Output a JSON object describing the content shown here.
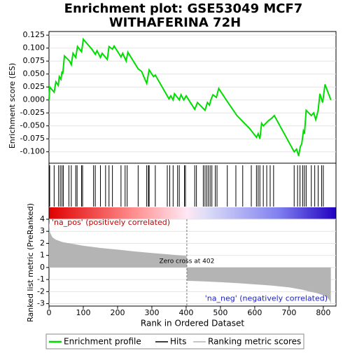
{
  "chart_data": [
    {
      "type": "line",
      "title": [
        "Enrichment plot: GSE53049 MCF7",
        "WITHAFERINA 72H"
      ],
      "y_label": "Enrichment score (ES)",
      "x": [
        0,
        2,
        15,
        20,
        27,
        30,
        35,
        38,
        40,
        45,
        60,
        65,
        70,
        78,
        83,
        95,
        100,
        125,
        135,
        140,
        150,
        155,
        170,
        175,
        185,
        190,
        210,
        215,
        225,
        230,
        260,
        270,
        285,
        292,
        305,
        310,
        350,
        355,
        362,
        366,
        380,
        385,
        393,
        400,
        425,
        433,
        455,
        462,
        468,
        472,
        478,
        488,
        495,
        520,
        548,
        570,
        585,
        605,
        610,
        615,
        620,
        625,
        640,
        650,
        657,
        715,
        722,
        728,
        733,
        737,
        742,
        745,
        750,
        765,
        772,
        778,
        785,
        790,
        798,
        805,
        822
      ],
      "series": [
        {
          "name": "Enrichment profile",
          "color": "#00dd00",
          "values": [
            0,
            0.025,
            0.015,
            0.035,
            0.028,
            0.045,
            0.04,
            0.055,
            0.05,
            0.085,
            0.075,
            0.068,
            0.09,
            0.082,
            0.103,
            0.093,
            0.117,
            0.098,
            0.088,
            0.095,
            0.082,
            0.09,
            0.078,
            0.103,
            0.098,
            0.104,
            0.083,
            0.09,
            0.075,
            0.092,
            0.06,
            0.055,
            0.032,
            0.058,
            0.045,
            0.048,
            0.002,
            0.008,
            0,
            0.012,
            0,
            0.01,
            0,
            0.008,
            -0.018,
            -0.005,
            -0.02,
            -0.005,
            -0.01,
            0,
            0.01,
            0.005,
            0.022,
            -0.003,
            -0.03,
            -0.045,
            -0.055,
            -0.072,
            -0.065,
            -0.075,
            -0.045,
            -0.05,
            -0.04,
            -0.035,
            -0.03,
            -0.1,
            -0.095,
            -0.108,
            -0.09,
            -0.085,
            -0.06,
            -0.065,
            -0.02,
            -0.03,
            -0.025,
            -0.038,
            -0.02,
            0.012,
            -0.005,
            0.03,
            0
          ]
        }
      ],
      "xlim": [
        0,
        837
      ],
      "ylim": [
        -0.122,
        0.132
      ],
      "yticks": [
        {
          "value": -0.1,
          "label": "-0.100"
        },
        -0.075,
        {
          "value": -0.05,
          "label": "-0.050"
        },
        -0.025,
        {
          "value": 0,
          "label": "0.000"
        },
        0.025,
        {
          "value": 0.05,
          "label": "0.050"
        },
        0.075,
        {
          "value": 0.1,
          "label": "0.100"
        },
        0.125
      ],
      "grid": true
    },
    {
      "type": "rug",
      "name": "Hits",
      "color": "#000000",
      "values": [
        2,
        15,
        28,
        33,
        38,
        42,
        58,
        65,
        78,
        82,
        95,
        98,
        130,
        135,
        150,
        165,
        175,
        185,
        210,
        222,
        228,
        260,
        285,
        290,
        292,
        310,
        345,
        352,
        362,
        375,
        380,
        395,
        398,
        425,
        430,
        450,
        455,
        460,
        465,
        470,
        475,
        485,
        490,
        520,
        545,
        565,
        590,
        605,
        610,
        615,
        625,
        635,
        645,
        655,
        715,
        725,
        732,
        740,
        745,
        750,
        765,
        775,
        785,
        795,
        800
      ],
      "xlim": [
        0,
        837
      ]
    },
    {
      "type": "area",
      "name": "Ranking metric scores",
      "color": "#b4b4b4",
      "y_label": "Ranked list metric (PreRanked)",
      "x_label": "Rank in Ordered Dataset",
      "x": [
        0,
        3,
        10,
        20,
        40,
        70,
        100,
        150,
        200,
        250,
        300,
        350,
        401,
        403,
        450,
        500,
        550,
        600,
        650,
        700,
        740,
        760,
        780,
        800,
        810,
        815,
        820,
        822
      ],
      "values": [
        3.8,
        2.9,
        2.5,
        2.3,
        2.1,
        1.95,
        1.8,
        1.62,
        1.48,
        1.33,
        1.2,
        1.08,
        0.95,
        -1.1,
        -1.15,
        -1.22,
        -1.3,
        -1.4,
        -1.5,
        -1.65,
        -1.85,
        -2.0,
        -2.12,
        -2.3,
        -2.45,
        -2.6,
        -2.8,
        -3.0
      ],
      "xlim": [
        0,
        837
      ],
      "ylim": [
        -3.2,
        4
      ],
      "yticks": [
        -3,
        -2,
        -1,
        0,
        1,
        2,
        3,
        4
      ],
      "xticks": [
        0,
        100,
        200,
        300,
        400,
        500,
        600,
        700,
        800
      ],
      "pos_label": "'na_pos' (positively correlated)",
      "neg_label": "'na_neg' (negatively correlated)",
      "zero_cross": {
        "value": 402,
        "label": "Zero cross at 402"
      },
      "grid": true
    }
  ]
}
